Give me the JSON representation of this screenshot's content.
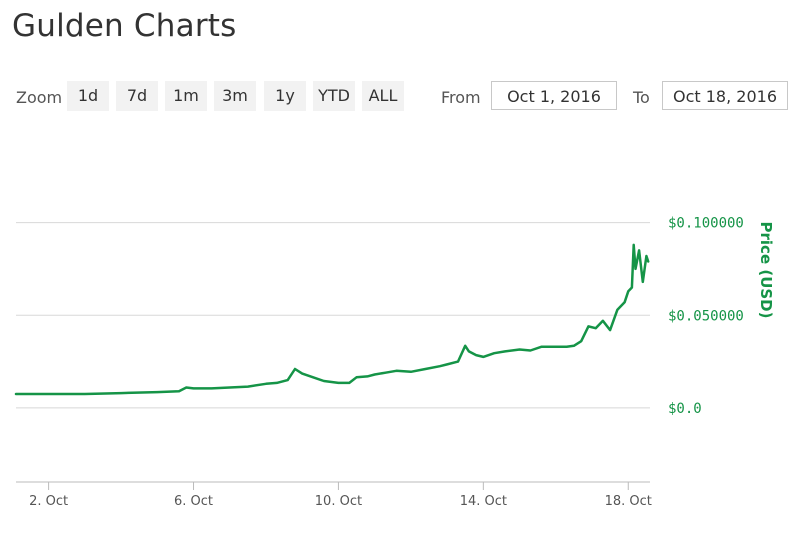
{
  "header": {
    "title": "Gulden Charts"
  },
  "toolbar": {
    "zoom_label": "Zoom",
    "zoom_buttons": [
      "1d",
      "7d",
      "1m",
      "3m",
      "1y",
      "YTD",
      "ALL"
    ],
    "from_label": "From",
    "from_value": "Oct 1, 2016",
    "to_label": "To",
    "to_value": "Oct 18, 2016"
  },
  "colors": {
    "series": "#159447",
    "grid": "#d8d8d8",
    "axis_text": "#555555"
  },
  "chart_data": {
    "type": "line",
    "title": "",
    "xlabel": "",
    "ylabel": "Price (USD)",
    "x_ticks": [
      "2. Oct",
      "6. Oct",
      "10. Oct",
      "14. Oct",
      "18. Oct"
    ],
    "x_tick_values": [
      2,
      6,
      10,
      14,
      18
    ],
    "xlim": [
      1.1,
      18.6
    ],
    "y_ticks": [
      "$0.0",
      "$0.050000",
      "$0.100000"
    ],
    "y_tick_values": [
      0,
      0.05,
      0.1
    ],
    "ylim": [
      -0.04,
      0.15
    ],
    "grid": true,
    "legend": "none",
    "series": [
      {
        "name": "Price (USD)",
        "x": [
          1.1,
          2.0,
          3.0,
          4.0,
          5.0,
          5.6,
          5.8,
          6.0,
          6.5,
          7.0,
          7.5,
          8.0,
          8.3,
          8.6,
          8.8,
          9.0,
          9.3,
          9.6,
          10.0,
          10.3,
          10.5,
          10.8,
          11.0,
          11.3,
          11.6,
          12.0,
          12.4,
          12.8,
          13.0,
          13.3,
          13.5,
          13.6,
          13.8,
          14.0,
          14.3,
          14.6,
          15.0,
          15.3,
          15.6,
          16.0,
          16.3,
          16.5,
          16.7,
          16.9,
          17.1,
          17.3,
          17.5,
          17.7,
          17.9,
          18.0,
          18.1,
          18.15,
          18.2,
          18.3,
          18.4,
          18.5,
          18.55
        ],
        "values": [
          0.0075,
          0.0075,
          0.0075,
          0.008,
          0.0085,
          0.009,
          0.011,
          0.0105,
          0.0105,
          0.011,
          0.0115,
          0.013,
          0.0135,
          0.015,
          0.021,
          0.0185,
          0.0165,
          0.0145,
          0.0135,
          0.0135,
          0.0165,
          0.017,
          0.018,
          0.019,
          0.02,
          0.0195,
          0.021,
          0.0225,
          0.0235,
          0.025,
          0.0335,
          0.0305,
          0.0285,
          0.0275,
          0.0295,
          0.0305,
          0.0315,
          0.031,
          0.033,
          0.033,
          0.033,
          0.0335,
          0.036,
          0.044,
          0.043,
          0.047,
          0.042,
          0.053,
          0.057,
          0.063,
          0.065,
          0.088,
          0.075,
          0.085,
          0.068,
          0.082,
          0.079
        ]
      }
    ]
  }
}
